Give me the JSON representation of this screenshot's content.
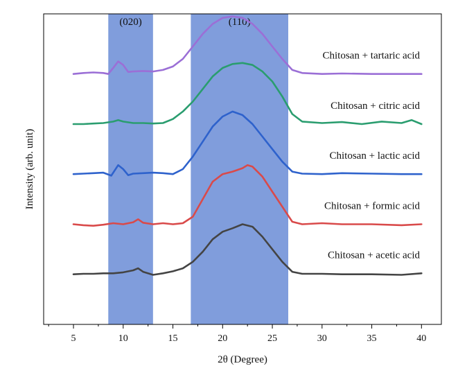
{
  "chart_data": {
    "type": "line",
    "title": "",
    "xlabel": "2θ (Degree)",
    "ylabel": "Intensity (arb. unit)",
    "xlim": [
      2,
      42
    ],
    "ylim": [
      0,
      6.2
    ],
    "x_ticks": [
      5,
      10,
      15,
      20,
      25,
      30,
      35,
      40
    ],
    "yticks_shown": false,
    "bands": [
      {
        "label": "(020)",
        "x_range": [
          8.5,
          13.0
        ],
        "color": "#4f77cf"
      },
      {
        "label": "(110)",
        "x_range": [
          16.8,
          26.6
        ],
        "color": "#4f77cf"
      }
    ],
    "series": [
      {
        "name": "Chitosan + tartaric acid",
        "color": "#9b6fd6",
        "x": [
          5,
          6,
          7,
          8,
          8.5,
          9,
          9.5,
          10,
          10.5,
          11,
          12,
          13,
          14,
          15,
          16,
          17,
          18,
          19,
          20,
          21,
          22,
          23,
          24,
          25,
          26,
          27,
          28,
          30,
          32,
          35,
          38,
          40
        ],
        "values": [
          5.0,
          5.02,
          5.03,
          5.02,
          5.0,
          5.12,
          5.25,
          5.18,
          5.04,
          5.05,
          5.06,
          5.05,
          5.08,
          5.15,
          5.3,
          5.55,
          5.8,
          6.0,
          6.12,
          6.15,
          6.12,
          6.0,
          5.8,
          5.55,
          5.3,
          5.08,
          5.02,
          5.0,
          5.01,
          5.0,
          5.0,
          5.0
        ]
      },
      {
        "name": "Chitosan + citric acid",
        "color": "#2a9d6f",
        "x": [
          5,
          6,
          7,
          8,
          9,
          9.5,
          10,
          11,
          12,
          13,
          14,
          15,
          16,
          17,
          18,
          19,
          20,
          21,
          22,
          23,
          24,
          25,
          26,
          27,
          28,
          30,
          32,
          34,
          36,
          38,
          39,
          40
        ],
        "values": [
          4.0,
          4.0,
          4.01,
          4.02,
          4.05,
          4.08,
          4.05,
          4.02,
          4.02,
          4.01,
          4.02,
          4.1,
          4.25,
          4.45,
          4.7,
          4.95,
          5.12,
          5.2,
          5.22,
          5.18,
          5.05,
          4.85,
          4.55,
          4.2,
          4.05,
          4.02,
          4.04,
          4.0,
          4.05,
          4.02,
          4.08,
          4.0
        ]
      },
      {
        "name": "Chitosan + lactic acid",
        "color": "#2e62cc",
        "x": [
          5,
          6,
          7,
          8,
          8.8,
          9.5,
          10,
          10.5,
          11,
          12,
          13,
          14,
          15,
          16,
          17,
          18,
          19,
          20,
          21,
          22,
          23,
          24,
          25,
          26,
          27,
          28,
          30,
          32,
          35,
          38,
          40
        ],
        "values": [
          3.0,
          3.01,
          3.02,
          3.03,
          2.97,
          3.18,
          3.1,
          2.98,
          3.01,
          3.02,
          3.03,
          3.02,
          3.0,
          3.1,
          3.35,
          3.65,
          3.95,
          4.15,
          4.25,
          4.18,
          4.0,
          3.75,
          3.5,
          3.25,
          3.05,
          3.01,
          3.0,
          3.02,
          3.01,
          3.0,
          3.0
        ]
      },
      {
        "name": "Chitosan + formic acid",
        "color": "#d94a4a",
        "x": [
          5,
          6,
          7,
          8,
          9,
          10,
          11,
          11.5,
          12,
          13,
          14,
          15,
          16,
          17,
          18,
          19,
          20,
          21,
          22,
          22.5,
          23,
          24,
          25,
          26,
          27,
          28,
          30,
          32,
          35,
          38,
          40
        ],
        "values": [
          2.0,
          1.98,
          1.97,
          1.99,
          2.02,
          2.0,
          2.04,
          2.1,
          2.03,
          2.0,
          2.02,
          2.0,
          2.02,
          2.15,
          2.5,
          2.85,
          3.0,
          3.05,
          3.12,
          3.18,
          3.15,
          2.95,
          2.65,
          2.35,
          2.05,
          2.0,
          2.02,
          2.0,
          2.0,
          1.98,
          2.0
        ]
      },
      {
        "name": "Chitosan + acetic acid",
        "color": "#444444",
        "x": [
          5,
          6,
          7,
          8,
          9,
          10,
          11,
          11.5,
          12,
          13,
          14,
          15,
          16,
          17,
          18,
          19,
          20,
          21,
          22,
          23,
          24,
          25,
          26,
          27,
          28,
          30,
          32,
          35,
          38,
          40
        ],
        "values": [
          1.0,
          1.01,
          1.01,
          1.02,
          1.02,
          1.04,
          1.08,
          1.12,
          1.05,
          0.99,
          1.02,
          1.06,
          1.12,
          1.25,
          1.45,
          1.7,
          1.85,
          1.92,
          2.0,
          1.95,
          1.75,
          1.5,
          1.25,
          1.05,
          1.01,
          1.01,
          1.0,
          1.0,
          0.99,
          1.02
        ]
      }
    ]
  }
}
